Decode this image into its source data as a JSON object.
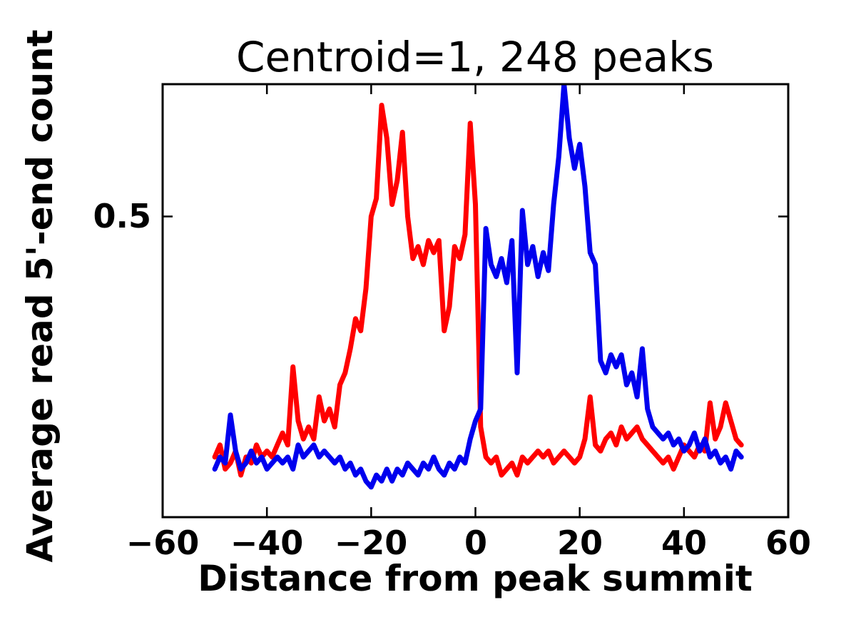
{
  "figure": {
    "title": "Centroid=1, 248 peaks",
    "xlabel": "Distance from peak summit",
    "ylabel": "Average read 5'-end count"
  },
  "chart_data": {
    "type": "line",
    "title": "Centroid=1, 248 peaks",
    "xlabel": "Distance from peak summit",
    "ylabel": "Average read 5'-end count",
    "xlim": [
      -60,
      60
    ],
    "ylim": [
      0,
      0.72
    ],
    "grid": false,
    "legend": "none",
    "xticks": {
      "values": [
        -60,
        -40,
        -20,
        0,
        20,
        40,
        60
      ],
      "labels": [
        "−60",
        "−40",
        "−20",
        "0",
        "20",
        "40",
        "60"
      ]
    },
    "yticks": {
      "values": [
        0.5
      ],
      "labels": [
        "0.5"
      ]
    },
    "x_start": -50,
    "x_step": 1,
    "series": [
      {
        "name": "red-line",
        "color": "#ff0000",
        "values": [
          0.1,
          0.12,
          0.08,
          0.09,
          0.11,
          0.07,
          0.1,
          0.09,
          0.12,
          0.1,
          0.11,
          0.1,
          0.12,
          0.14,
          0.12,
          0.25,
          0.16,
          0.13,
          0.15,
          0.13,
          0.2,
          0.16,
          0.18,
          0.15,
          0.22,
          0.24,
          0.28,
          0.33,
          0.31,
          0.38,
          0.5,
          0.53,
          0.685,
          0.63,
          0.52,
          0.56,
          0.64,
          0.5,
          0.43,
          0.45,
          0.42,
          0.46,
          0.44,
          0.46,
          0.31,
          0.35,
          0.45,
          0.43,
          0.47,
          0.655,
          0.52,
          0.15,
          0.1,
          0.09,
          0.1,
          0.07,
          0.08,
          0.09,
          0.07,
          0.1,
          0.09,
          0.1,
          0.11,
          0.1,
          0.11,
          0.09,
          0.1,
          0.11,
          0.1,
          0.09,
          0.1,
          0.13,
          0.2,
          0.12,
          0.11,
          0.13,
          0.14,
          0.12,
          0.15,
          0.13,
          0.14,
          0.15,
          0.13,
          0.12,
          0.11,
          0.1,
          0.09,
          0.1,
          0.08,
          0.1,
          0.12,
          0.11,
          0.1,
          0.12,
          0.11,
          0.19,
          0.13,
          0.15,
          0.19,
          0.16,
          0.13,
          0.12
        ]
      },
      {
        "name": "blue-line",
        "color": "#0000ee",
        "values": [
          0.08,
          0.1,
          0.09,
          0.17,
          0.11,
          0.08,
          0.09,
          0.11,
          0.09,
          0.1,
          0.08,
          0.09,
          0.1,
          0.09,
          0.1,
          0.08,
          0.12,
          0.1,
          0.11,
          0.12,
          0.1,
          0.11,
          0.1,
          0.09,
          0.1,
          0.08,
          0.09,
          0.07,
          0.08,
          0.06,
          0.05,
          0.07,
          0.06,
          0.08,
          0.06,
          0.08,
          0.07,
          0.09,
          0.08,
          0.07,
          0.09,
          0.08,
          0.1,
          0.08,
          0.07,
          0.09,
          0.08,
          0.1,
          0.09,
          0.13,
          0.16,
          0.18,
          0.48,
          0.42,
          0.4,
          0.43,
          0.39,
          0.46,
          0.24,
          0.51,
          0.42,
          0.45,
          0.4,
          0.44,
          0.41,
          0.52,
          0.6,
          0.72,
          0.63,
          0.58,
          0.62,
          0.55,
          0.44,
          0.42,
          0.26,
          0.24,
          0.27,
          0.25,
          0.27,
          0.22,
          0.24,
          0.2,
          0.28,
          0.18,
          0.15,
          0.14,
          0.13,
          0.14,
          0.12,
          0.13,
          0.11,
          0.12,
          0.14,
          0.11,
          0.13,
          0.1,
          0.11,
          0.09,
          0.1,
          0.08,
          0.11,
          0.1
        ]
      }
    ]
  }
}
